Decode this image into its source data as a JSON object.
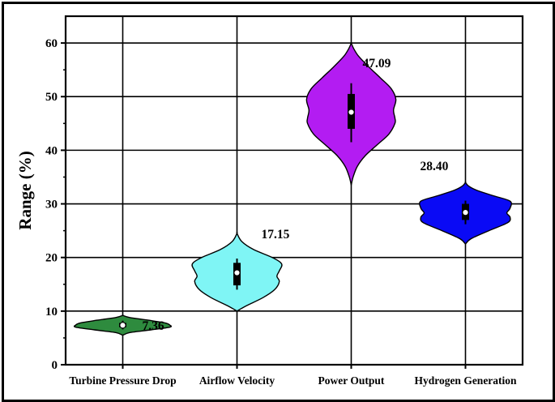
{
  "chart_data": {
    "type": "violin",
    "title": "",
    "xlabel": "",
    "ylabel": "Range (%)",
    "ylim": [
      0,
      65
    ],
    "yticks": [
      0,
      10,
      20,
      30,
      40,
      50,
      60
    ],
    "grid": true,
    "categories": [
      "Turbine Pressure Drop",
      "Airflow Velocity",
      "Power Output",
      "Hydrogen Generation"
    ],
    "series": [
      {
        "category": "Turbine Pressure Drop",
        "median": 7.36,
        "label": "7.36",
        "color": "#2e8b3e",
        "min": 5.5,
        "max": 9.2,
        "q1": 7.0,
        "q3": 7.8,
        "whisker_low": 6.6,
        "whisker_high": 8.2,
        "profile": [
          [
            5.5,
            0.0
          ],
          [
            6.0,
            0.15
          ],
          [
            6.5,
            0.6
          ],
          [
            7.0,
            1.0
          ],
          [
            7.4,
            1.0
          ],
          [
            7.8,
            0.9
          ],
          [
            8.3,
            0.55
          ],
          [
            8.8,
            0.15
          ],
          [
            9.2,
            0.0
          ]
        ]
      },
      {
        "category": "Airflow Velocity",
        "median": 17.15,
        "label": "17.15",
        "color": "#7ff5f5",
        "min": 10.0,
        "max": 24.5,
        "q1": 14.8,
        "q3": 19.0,
        "whisker_low": 14.0,
        "whisker_high": 19.8,
        "profile": [
          [
            10.0,
            0.0
          ],
          [
            11.0,
            0.2
          ],
          [
            12.5,
            0.55
          ],
          [
            14.0,
            0.8
          ],
          [
            15.5,
            0.9
          ],
          [
            16.5,
            0.85
          ],
          [
            17.5,
            0.9
          ],
          [
            18.8,
            0.95
          ],
          [
            20.0,
            0.75
          ],
          [
            21.5,
            0.35
          ],
          [
            23.0,
            0.1
          ],
          [
            24.5,
            0.0
          ]
        ]
      },
      {
        "category": "Power Output",
        "median": 47.09,
        "label": "47.09",
        "color": "#b31cf2",
        "min": 33.5,
        "max": 60.0,
        "q1": 44.0,
        "q3": 50.5,
        "whisker_low": 41.5,
        "whisker_high": 52.5,
        "profile": [
          [
            33.5,
            0.0
          ],
          [
            35.0,
            0.04
          ],
          [
            37.0,
            0.13
          ],
          [
            39.0,
            0.3
          ],
          [
            41.0,
            0.55
          ],
          [
            43.0,
            0.8
          ],
          [
            45.0,
            0.93
          ],
          [
            46.0,
            0.93
          ],
          [
            47.5,
            0.9
          ],
          [
            49.5,
            0.95
          ],
          [
            51.5,
            0.85
          ],
          [
            53.5,
            0.62
          ],
          [
            55.5,
            0.38
          ],
          [
            57.5,
            0.16
          ],
          [
            59.0,
            0.05
          ],
          [
            60.0,
            0.0
          ]
        ]
      },
      {
        "category": "Hydrogen Generation",
        "median": 28.4,
        "label": "28.40",
        "color": "#0a0af5",
        "min": 22.5,
        "max": 34.0,
        "q1": 27.0,
        "q3": 30.0,
        "whisker_low": 26.2,
        "whisker_high": 30.6,
        "profile": [
          [
            22.5,
            0.0
          ],
          [
            23.5,
            0.12
          ],
          [
            25.0,
            0.5
          ],
          [
            26.5,
            0.9
          ],
          [
            27.5,
            0.95
          ],
          [
            28.3,
            0.88
          ],
          [
            29.2,
            0.95
          ],
          [
            30.5,
            0.95
          ],
          [
            31.5,
            0.6
          ],
          [
            32.5,
            0.25
          ],
          [
            33.3,
            0.07
          ],
          [
            34.0,
            0.0
          ]
        ]
      }
    ]
  }
}
